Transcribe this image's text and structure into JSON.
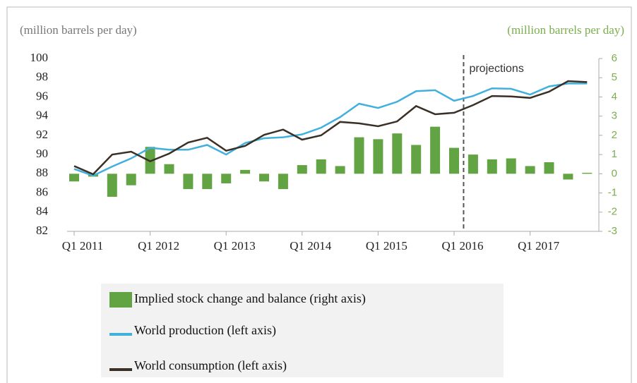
{
  "chart_data": {
    "type": "combo",
    "y_label": "(million barrels per day)",
    "y2_label": "(million barrels per day)",
    "annotation": "projections",
    "categories": [
      "Q1 2011",
      null,
      null,
      null,
      "Q1 2012",
      null,
      null,
      null,
      "Q1 2013",
      null,
      null,
      null,
      "Q1 2014",
      null,
      null,
      null,
      "Q1 2015",
      null,
      null,
      null,
      "Q1 2016",
      null,
      null,
      null,
      "Q1 2017",
      null,
      null,
      null
    ],
    "ylim": [
      82,
      100
    ],
    "yticks": [
      82,
      84,
      86,
      88,
      90,
      92,
      94,
      96,
      98,
      100
    ],
    "y2lim": [
      -3,
      6
    ],
    "y2ticks": [
      -3,
      -2,
      -1,
      0,
      1,
      2,
      3,
      4,
      5,
      6
    ],
    "series": [
      {
        "name": "Implied stock change and balance (right axis)",
        "type": "bar",
        "axis": "y2",
        "color": "#62a443",
        "values": [
          -0.4,
          -0.15,
          -1.2,
          -0.6,
          1.4,
          0.5,
          -0.8,
          -0.8,
          -0.5,
          0.2,
          -0.4,
          -0.8,
          0.45,
          0.75,
          0.4,
          1.9,
          1.8,
          2.1,
          1.5,
          2.45,
          1.35,
          1.0,
          0.75,
          0.8,
          0.4,
          0.6,
          -0.3,
          0.05
        ]
      },
      {
        "name": "World production (left axis)",
        "type": "line",
        "color": "#41b0dc",
        "values": [
          88.5,
          87.8,
          88.75,
          89.6,
          90.7,
          90.5,
          90.5,
          91.0,
          90.0,
          91.2,
          91.7,
          91.8,
          92.1,
          92.8,
          93.9,
          95.3,
          94.85,
          95.5,
          96.6,
          96.7,
          95.6,
          96.1,
          96.9,
          96.85,
          96.25,
          97.1,
          97.4,
          97.4
        ]
      },
      {
        "name": "World consumption (left axis)",
        "type": "line",
        "color": "#3a3026",
        "values": [
          88.8,
          87.95,
          90.0,
          90.3,
          89.3,
          90.1,
          91.25,
          91.75,
          90.4,
          90.9,
          92.05,
          92.6,
          91.55,
          92.0,
          93.4,
          93.25,
          92.95,
          93.45,
          95.05,
          94.2,
          94.35,
          95.15,
          96.1,
          96.05,
          95.9,
          96.55,
          97.65,
          97.55
        ]
      }
    ]
  }
}
